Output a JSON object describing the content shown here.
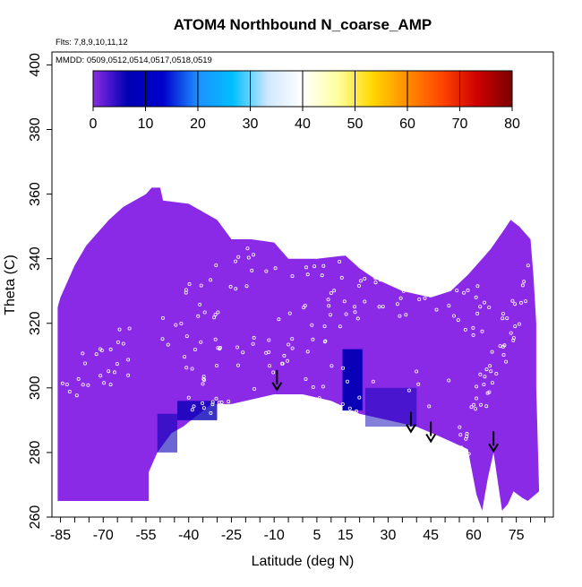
{
  "chart_data": {
    "type": "heatmap",
    "title": "ATOM4 Northbound N_coarse_AMP",
    "subtitle_lines": [
      "Flts: 7,8,9,10,11,12",
      "MMDD: 0509,0512,0514,0517,0518,0519"
    ],
    "xlabel": "Latitude (deg N)",
    "ylabel": "Theta (C)",
    "xlim": [
      -88,
      88
    ],
    "ylim": [
      260,
      404
    ],
    "xticks": [
      -85,
      -70,
      -55,
      -40,
      -25,
      -10,
      5,
      15,
      30,
      45,
      60,
      75
    ],
    "yticks": [
      260,
      280,
      300,
      320,
      340,
      360,
      380,
      400
    ],
    "colorbar": {
      "range": [
        0,
        80
      ],
      "ticks": [
        0,
        10,
        20,
        30,
        40,
        50,
        60,
        70,
        80
      ],
      "colors": [
        "#8a2be2",
        "#0000b4",
        "#0000cd",
        "#1e90ff",
        "#00bfff",
        "#cfe8ff",
        "#ffffff",
        "#ffffa0",
        "#ffd700",
        "#ff8c00",
        "#ff4500",
        "#cd0000",
        "#7a0000"
      ]
    },
    "background_value": 2,
    "enhanced_regions": [
      {
        "lat_range": [
          14,
          21
        ],
        "theta_range": [
          293,
          312
        ],
        "value": 10
      },
      {
        "lat_range": [
          -44,
          -30
        ],
        "theta_range": [
          290,
          296
        ],
        "value": 8
      },
      {
        "lat_range": [
          -51,
          -44
        ],
        "theta_range": [
          280,
          292
        ],
        "value": 6
      },
      {
        "lat_range": [
          22,
          40
        ],
        "theta_range": [
          288,
          300
        ],
        "value": 5
      }
    ],
    "arrows_lat": [
      -9,
      38,
      45,
      67
    ],
    "colors": {
      "field": "#8b2ae6",
      "enhanced": "#0a00b8",
      "markers": "#ffffff"
    }
  }
}
